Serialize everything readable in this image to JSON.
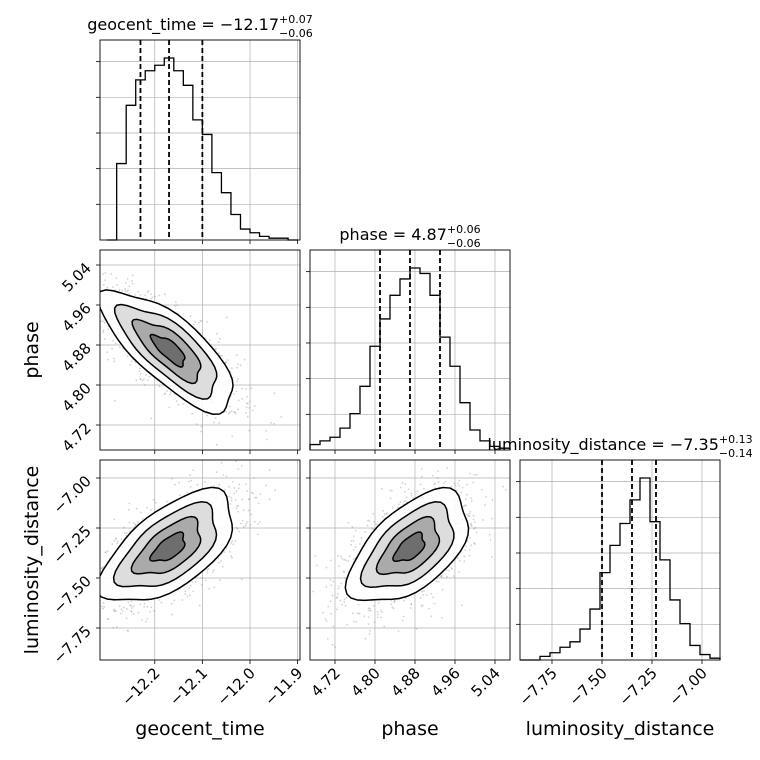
{
  "chart_data": {
    "type": "corner",
    "parameters": [
      {
        "key": "geocent_time",
        "label": "geocent_time",
        "range": [
          -12.315,
          -11.895
        ],
        "ticks": [
          -12.2,
          -12.1,
          -12.0,
          -11.9
        ],
        "tick_labels": [
          "−12.2",
          "−12.1",
          "−12.0",
          "−11.9"
        ],
        "title_prefix": "geocent_time = −12.17",
        "title_plus": "+0.07",
        "title_minus": "−0.06",
        "median": -12.17,
        "quantiles": [
          -12.23,
          -12.17,
          -12.1
        ],
        "hist": {
          "bin_edges": [
            -12.3,
            -12.28,
            -12.26,
            -12.24,
            -12.22,
            -12.2,
            -12.18,
            -12.16,
            -12.14,
            -12.12,
            -12.1,
            -12.08,
            -12.06,
            -12.04,
            -12.02,
            -12.0,
            -11.98,
            -11.96,
            -11.94,
            -11.92,
            -11.9
          ],
          "counts": [
            0.0,
            0.42,
            0.74,
            0.88,
            0.93,
            0.96,
            1.0,
            0.93,
            0.85,
            0.66,
            0.58,
            0.37,
            0.26,
            0.14,
            0.06,
            0.04,
            0.02,
            0.01,
            0.01,
            0.0
          ]
        }
      },
      {
        "key": "phase",
        "label": "phase",
        "range": [
          4.67,
          5.07
        ],
        "ticks": [
          4.72,
          4.8,
          4.88,
          4.96,
          5.04
        ],
        "tick_labels": [
          "4.72",
          "4.80",
          "4.88",
          "4.96",
          "5.04"
        ],
        "title_prefix": "phase = 4.87",
        "title_plus": "+0.06",
        "title_minus": "−0.06",
        "median": 4.87,
        "quantiles": [
          4.81,
          4.87,
          4.93
        ],
        "hist": {
          "bin_edges": [
            4.67,
            4.69,
            4.71,
            4.73,
            4.75,
            4.77,
            4.79,
            4.81,
            4.83,
            4.85,
            4.87,
            4.89,
            4.91,
            4.93,
            4.95,
            4.97,
            4.99,
            5.01,
            5.03,
            5.05,
            5.07
          ],
          "counts": [
            0.03,
            0.05,
            0.07,
            0.12,
            0.2,
            0.35,
            0.57,
            0.72,
            0.85,
            0.94,
            1.0,
            0.97,
            0.85,
            0.62,
            0.46,
            0.26,
            0.11,
            0.05,
            0.02,
            0.01
          ]
        }
      },
      {
        "key": "luminosity_distance",
        "label": "luminosity_distance",
        "range": [
          -7.91,
          -6.91
        ],
        "ticks": [
          -7.75,
          -7.5,
          -7.25,
          -7.0
        ],
        "tick_labels": [
          "−7.75",
          "−7.50",
          "−7.25",
          "−7.00"
        ],
        "title_prefix": "luminosity_distance = −7.35",
        "title_plus": "+0.13",
        "title_minus": "−0.14",
        "median": -7.35,
        "quantiles": [
          -7.5,
          -7.35,
          -7.23
        ],
        "hist": {
          "bin_edges": [
            -7.91,
            -7.86,
            -7.81,
            -7.76,
            -7.71,
            -7.66,
            -7.61,
            -7.56,
            -7.51,
            -7.46,
            -7.41,
            -7.36,
            -7.31,
            -7.26,
            -7.21,
            -7.16,
            -7.11,
            -7.06,
            -7.01,
            -6.96,
            -6.91
          ],
          "counts": [
            0.0,
            0.0,
            0.02,
            0.04,
            0.07,
            0.1,
            0.17,
            0.28,
            0.48,
            0.63,
            0.75,
            0.88,
            1.0,
            0.76,
            0.55,
            0.33,
            0.2,
            0.08,
            0.03,
            0.01
          ]
        }
      }
    ],
    "pairs": [
      {
        "x": "geocent_time",
        "y": "phase",
        "center": [
          -12.17,
          4.87
        ],
        "std": [
          0.07,
          0.06
        ],
        "correlation": -0.75
      },
      {
        "x": "geocent_time",
        "y": "luminosity_distance",
        "center": [
          -12.17,
          -7.35
        ],
        "std": [
          0.07,
          0.14
        ],
        "correlation": 0.6
      },
      {
        "x": "phase",
        "y": "luminosity_distance",
        "center": [
          4.87,
          -7.35
        ],
        "std": [
          0.06,
          0.14
        ],
        "correlation": 0.55
      }
    ],
    "grid": true,
    "colors": {
      "line": "#000000",
      "grid": "#b0b0b0",
      "scatter": "#7f7f7f"
    }
  }
}
